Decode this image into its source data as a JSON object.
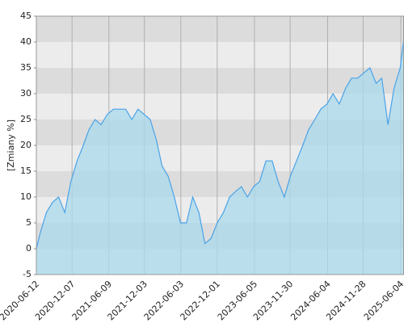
{
  "chart_data": {
    "type": "area",
    "ylabel": "[Zmiany %]",
    "x": [
      "2020-06-12",
      "2020-07-01",
      "2020-08-01",
      "2020-09-01",
      "2020-10-01",
      "2020-11-01",
      "2020-12-01",
      "2021-01-01",
      "2021-02-01",
      "2021-03-01",
      "2021-04-01",
      "2021-05-01",
      "2021-06-01",
      "2021-07-01",
      "2021-08-01",
      "2021-09-01",
      "2021-10-01",
      "2021-11-01",
      "2021-12-01",
      "2022-01-01",
      "2022-02-01",
      "2022-03-01",
      "2022-04-01",
      "2022-05-01",
      "2022-06-01",
      "2022-07-01",
      "2022-08-01",
      "2022-09-01",
      "2022-10-01",
      "2022-11-01",
      "2022-12-01",
      "2023-01-01",
      "2023-02-01",
      "2023-03-01",
      "2023-04-01",
      "2023-05-01",
      "2023-06-01",
      "2023-07-01",
      "2023-08-01",
      "2023-09-01",
      "2023-10-01",
      "2023-11-01",
      "2023-12-01",
      "2024-01-01",
      "2024-02-01",
      "2024-03-01",
      "2024-04-01",
      "2024-05-01",
      "2024-06-01",
      "2024-07-01",
      "2024-08-01",
      "2024-09-01",
      "2024-10-01",
      "2024-11-01",
      "2024-12-01",
      "2025-01-01",
      "2025-02-01",
      "2025-03-01",
      "2025-04-01",
      "2025-05-01",
      "2025-06-01",
      "2025-06-20"
    ],
    "values": [
      0,
      3,
      7,
      9,
      10,
      7,
      13,
      17,
      20,
      23,
      25,
      24,
      26,
      27,
      27,
      27,
      25,
      27,
      26,
      25,
      21,
      16,
      14,
      10,
      5,
      5,
      10,
      7,
      1,
      2,
      5,
      7,
      10,
      11,
      12,
      10,
      12,
      13,
      17,
      17,
      13,
      10,
      14,
      17,
      20,
      23,
      25,
      27,
      28,
      30,
      28,
      31,
      33,
      33,
      34,
      35,
      32,
      33,
      24,
      31,
      35,
      41
    ],
    "color": "#4aa3e8",
    "fill": "#a9d9ec",
    "xlim": [
      "2020-06-12",
      "2025-06-20"
    ],
    "xticks": [
      "2020-06-12",
      "2020-12-07",
      "2021-06-09",
      "2021-12-03",
      "2022-06-03",
      "2022-12-01",
      "2023-06-05",
      "2023-11-30",
      "2024-06-04",
      "2024-11-28",
      "2025-06-04"
    ],
    "ylim": [
      -5,
      45
    ],
    "yticks": [
      -5,
      0,
      5,
      10,
      15,
      20,
      25,
      30,
      35,
      40,
      45
    ],
    "band_colors": [
      "#dcdcdc",
      "#ececec"
    ],
    "grid": true
  }
}
